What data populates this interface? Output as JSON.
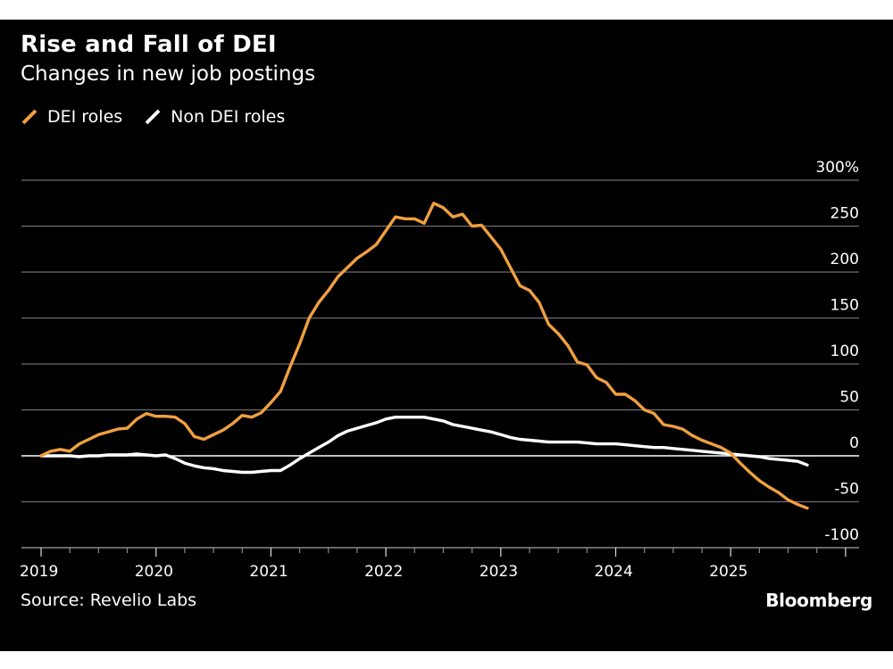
{
  "header": {
    "title": "Rise and Fall of DEI",
    "subtitle": "Changes in new job postings"
  },
  "legend": [
    {
      "label": "DEI roles",
      "color": "#f0a040"
    },
    {
      "label": "Non DEI roles",
      "color": "#ffffff"
    }
  ],
  "footer": {
    "source": "Source: Revelio Labs",
    "brand": "Bloomberg"
  },
  "chart_data": {
    "type": "line",
    "title": "Rise and Fall of DEI",
    "subtitle": "Changes in new job postings",
    "xlabel": "",
    "ylabel": "",
    "y_unit": "%",
    "ylim": [
      -100,
      300
    ],
    "y_ticks": [
      300,
      250,
      200,
      150,
      100,
      50,
      0,
      -50,
      -100
    ],
    "y_tick_labels": [
      "300%",
      "250",
      "200",
      "150",
      "100",
      "50",
      "0",
      "-50",
      "-100"
    ],
    "xlim": [
      2019.0,
      2026.0
    ],
    "x_ticks": [
      2019,
      2020,
      2021,
      2022,
      2023,
      2024,
      2025
    ],
    "x_tick_labels": [
      "2019",
      "2020",
      "2021",
      "2022",
      "2023",
      "2024",
      "2025"
    ],
    "x_start": "2019-01",
    "x_step": "month",
    "grid": true,
    "legend_position": "top-left",
    "series": [
      {
        "name": "DEI roles",
        "color": "#f0a040",
        "values": [
          0,
          5,
          7,
          5,
          13,
          18,
          23,
          26,
          29,
          30,
          40,
          46,
          43,
          43,
          42,
          35,
          21,
          18,
          23,
          28,
          35,
          44,
          42,
          47,
          58,
          70,
          97,
          122,
          150,
          167,
          180,
          195,
          205,
          215,
          222,
          230,
          245,
          260,
          258,
          258,
          253,
          275,
          270,
          260,
          263,
          250,
          251,
          238,
          225,
          205,
          185,
          180,
          167,
          143,
          133,
          120,
          102,
          99,
          85,
          80,
          67,
          67,
          60,
          50,
          46,
          34,
          32,
          29,
          22,
          17,
          13,
          9,
          3,
          -8,
          -18,
          -27,
          -34,
          -40,
          -48,
          -53,
          -57
        ]
      },
      {
        "name": "Non DEI roles",
        "color": "#ffffff",
        "values": [
          0,
          0,
          0,
          0,
          -1,
          0,
          0,
          1,
          1,
          1,
          2,
          1,
          0,
          1,
          -3,
          -8,
          -11,
          -13,
          -14,
          -16,
          -17,
          -18,
          -18,
          -17,
          -16,
          -16,
          -10,
          -3,
          3,
          9,
          15,
          22,
          27,
          30,
          33,
          36,
          40,
          42,
          42,
          42,
          42,
          40,
          38,
          34,
          32,
          30,
          28,
          26,
          23,
          20,
          18,
          17,
          16,
          15,
          15,
          15,
          15,
          14,
          13,
          13,
          13,
          12,
          11,
          10,
          9,
          9,
          8,
          7,
          6,
          5,
          4,
          3,
          2,
          1,
          0,
          -1,
          -3,
          -4,
          -5,
          -6,
          -10
        ]
      }
    ]
  }
}
